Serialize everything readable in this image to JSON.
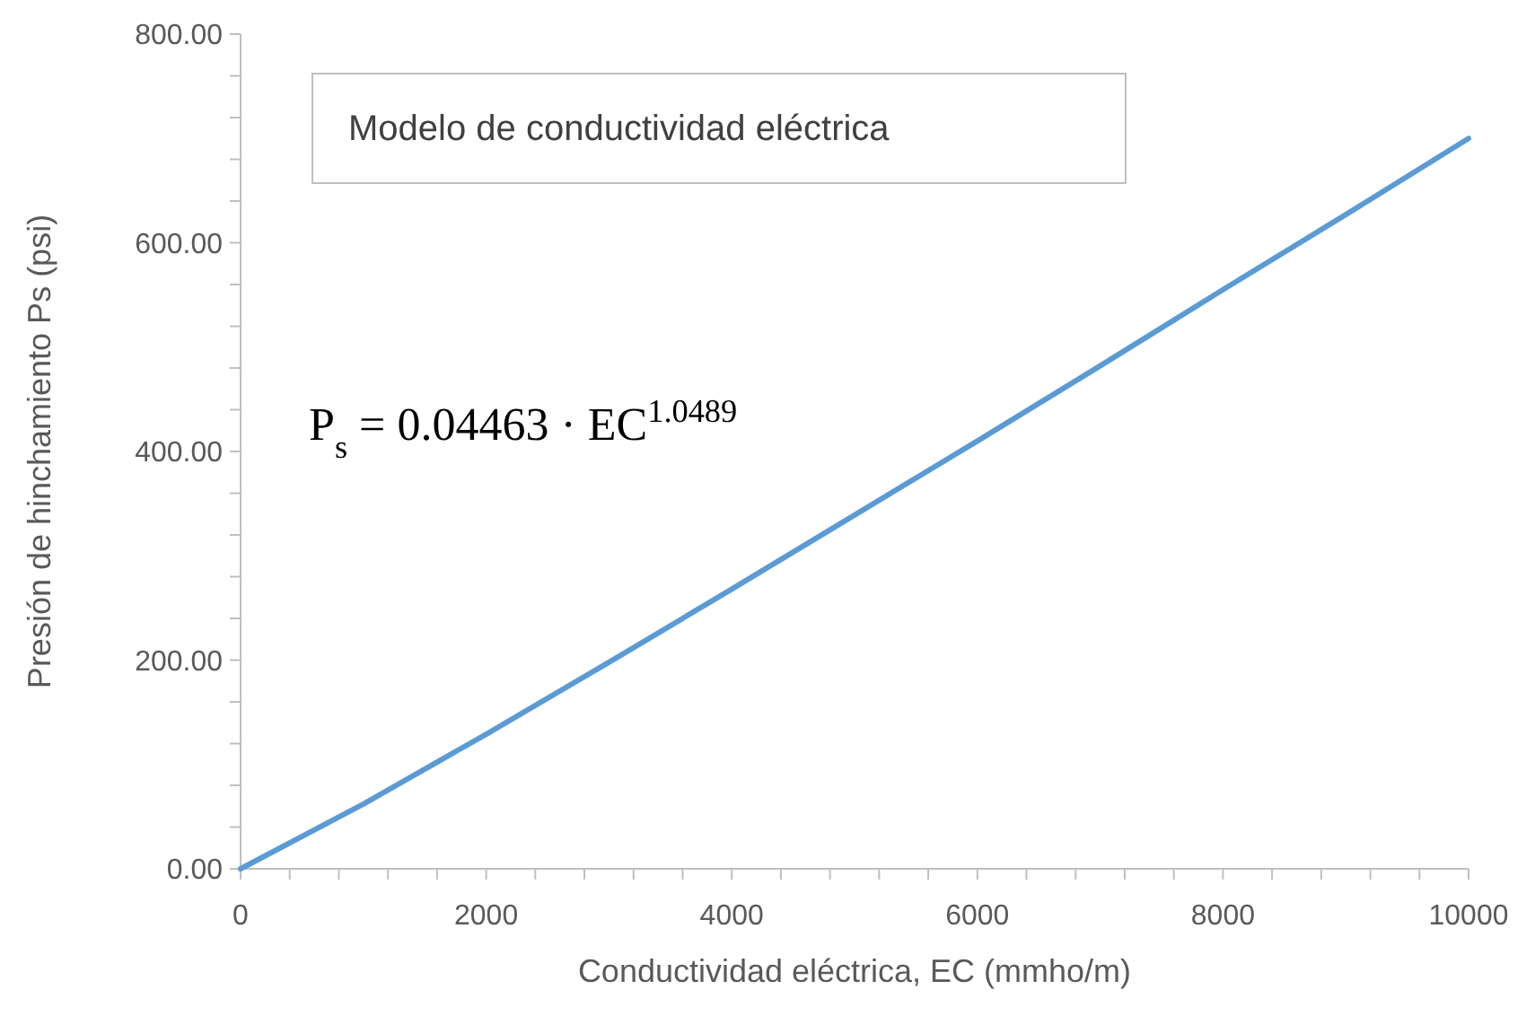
{
  "chart_data": {
    "type": "line",
    "title": "Modelo de conductividad eléctrica",
    "xlabel": "Conductividad eléctrica, EC (mmho/m)",
    "ylabel": "Presión de hinchamiento Ps (psi)",
    "annotations": [
      "P$_{s}$ = 0.04463 · EC$^{1.0489}$"
    ],
    "x": [
      0,
      1000,
      2000,
      3000,
      4000,
      5000,
      6000,
      7000,
      8000,
      9000,
      10000
    ],
    "series": [
      {
        "color": "#5b9bd5",
        "values": [
          0,
          62,
          129,
          198,
          268,
          339,
          410,
          482,
          555,
          627,
          700
        ]
      }
    ],
    "xlim": [
      0,
      10000
    ],
    "xticks": [
      0,
      {
        "value": 400,
        "label": null
      },
      {
        "value": 800,
        "label": null
      },
      {
        "value": 1200,
        "label": null
      },
      {
        "value": 1600,
        "label": null
      },
      2000,
      {
        "value": 2400,
        "label": null
      },
      {
        "value": 2800,
        "label": null
      },
      {
        "value": 3200,
        "label": null
      },
      {
        "value": 3600,
        "label": null
      },
      4000,
      {
        "value": 4400,
        "label": null
      },
      {
        "value": 4800,
        "label": null
      },
      {
        "value": 5200,
        "label": null
      },
      {
        "value": 5600,
        "label": null
      },
      6000,
      {
        "value": 6400,
        "label": null
      },
      {
        "value": 6800,
        "label": null
      },
      {
        "value": 7200,
        "label": null
      },
      {
        "value": 7600,
        "label": null
      },
      8000,
      {
        "value": 8400,
        "label": null
      },
      {
        "value": 8800,
        "label": null
      },
      {
        "value": 9200,
        "label": null
      },
      {
        "value": 9600,
        "label": null
      },
      10000
    ],
    "ylim": [
      0,
      800
    ],
    "yticks": [
      {
        "value": 0,
        "label": "0.00"
      },
      {
        "value": 40,
        "label": null
      },
      {
        "value": 80,
        "label": null
      },
      {
        "value": 120,
        "label": null
      },
      {
        "value": 160,
        "label": null
      },
      {
        "value": 200,
        "label": "200.00"
      },
      {
        "value": 240,
        "label": null
      },
      {
        "value": 280,
        "label": null
      },
      {
        "value": 320,
        "label": null
      },
      {
        "value": 360,
        "label": null
      },
      {
        "value": 400,
        "label": "400.00"
      },
      {
        "value": 440,
        "label": null
      },
      {
        "value": 480,
        "label": null
      },
      {
        "value": 520,
        "label": null
      },
      {
        "value": 560,
        "label": null
      },
      {
        "value": 600,
        "label": "600.00"
      },
      {
        "value": 640,
        "label": null
      },
      {
        "value": 680,
        "label": null
      },
      {
        "value": 720,
        "label": null
      },
      {
        "value": 760,
        "label": null
      },
      {
        "value": 800,
        "label": "800.00"
      }
    ],
    "grid": false,
    "marker": "none",
    "line_style": "solid"
  }
}
